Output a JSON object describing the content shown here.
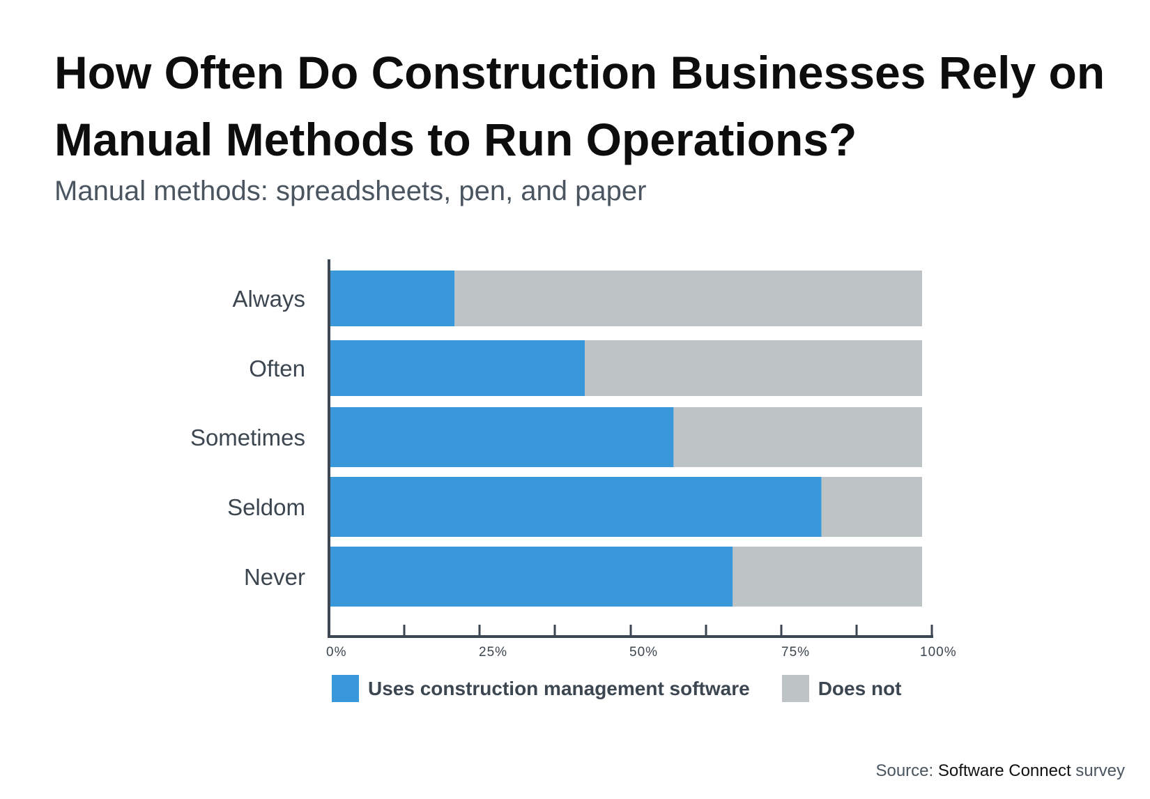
{
  "chart_data": {
    "type": "bar",
    "orientation": "horizontal",
    "stacked": true,
    "title": "How Often Do Construction Businesses Rely on Manual Methods to Run Operations?",
    "subtitle": "Manual methods: spreadsheets, pen, and paper",
    "categories": [
      "Always",
      "Often",
      "Sometimes",
      "Seldom",
      "Never"
    ],
    "series": [
      {
        "name": "Uses construction management software",
        "color": "#3898da",
        "values": [
          21,
          43,
          58,
          83,
          68
        ]
      },
      {
        "name": "Does not",
        "color": "#bec3c6",
        "values": [
          79,
          57,
          42,
          17,
          32
        ]
      }
    ],
    "xlim": [
      0,
      100
    ],
    "x_ticks": [
      "0%",
      "25%",
      "50%",
      "75%",
      "100%"
    ],
    "xlabel": "",
    "ylabel": "",
    "grid": false,
    "legend_position": "bottom"
  },
  "source": {
    "prefix": "Source: ",
    "name": "Software Connect",
    "suffix": " survey"
  }
}
